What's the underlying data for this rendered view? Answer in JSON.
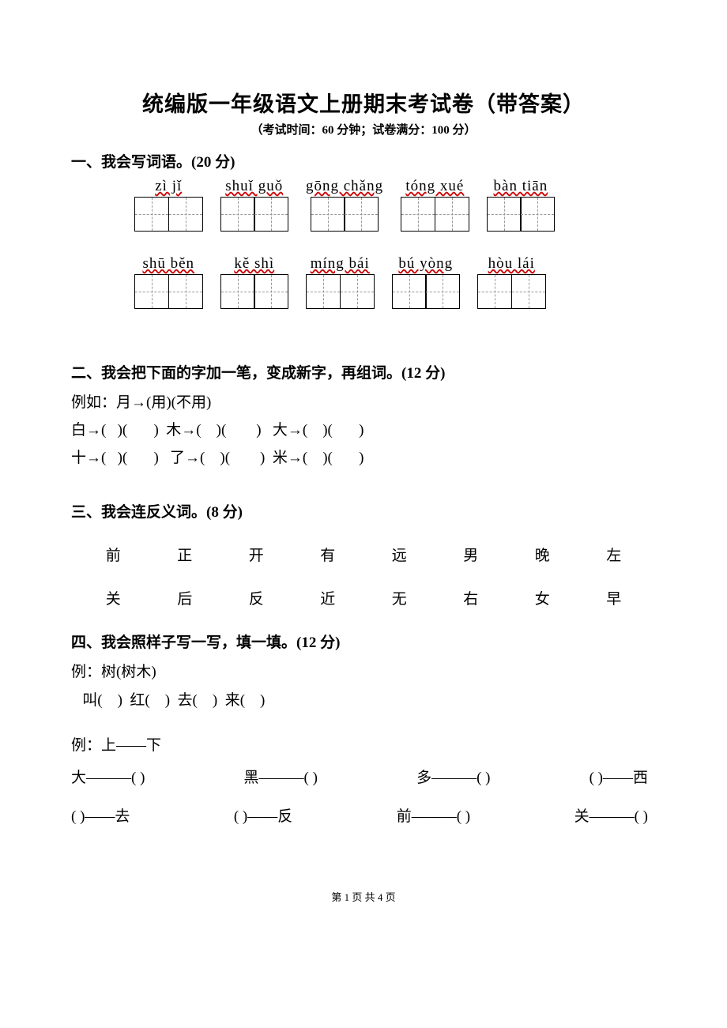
{
  "title": "统编版一年级语文上册期末考试卷（带答案）",
  "subtitle": "（考试时间：60 分钟；试卷满分：100 分）",
  "sections": {
    "s1": {
      "head": "一、我会写词语。(20 分)",
      "row1": [
        {
          "pinyin": "zì  jǐ",
          "cells": 2
        },
        {
          "pinyin": "shuǐ guǒ",
          "cells": 2
        },
        {
          "pinyin": "gōng chǎng",
          "cells": 2
        },
        {
          "pinyin": "tóng xué",
          "cells": 2
        },
        {
          "pinyin": "bàn tiān",
          "cells": 2
        }
      ],
      "row2": [
        {
          "pinyin": "shū běn",
          "cells": 2
        },
        {
          "pinyin": "kě shì",
          "cells": 2
        },
        {
          "pinyin": "míng bái",
          "cells": 2
        },
        {
          "pinyin": "bú yòng",
          "cells": 2
        },
        {
          "pinyin": "hòu lái",
          "cells": 2
        }
      ]
    },
    "s2": {
      "head": "二、我会把下面的字加一笔，变成新字，再组词。(12 分)",
      "example": "例如：月→(用)(不用)",
      "line1": "白→(   )(       )  木→(    )(        )   大→(    )(       )",
      "line2": "十→(   )(       )   了→(    )(        )  米→(    )(       )"
    },
    "s3": {
      "head": "三、我会连反义词。(8 分)",
      "top": [
        "前",
        "正",
        "开",
        "有",
        "远",
        "男",
        "晚",
        "左"
      ],
      "bottom": [
        "关",
        "后",
        "反",
        "近",
        "无",
        "右",
        "女",
        "早"
      ]
    },
    "s4": {
      "head": "四、我会照样子写一写，填一填。(12 分)",
      "ex1": "例：树(树木)",
      "ex1_items": "   叫(    )  红(    )  去(    )  来(    )",
      "ex2": "例：上——下",
      "pairA": [
        "大———(    )",
        "黑———(    )",
        "多———(    )",
        "(    )——西"
      ],
      "pairB": [
        "(    )——去",
        "(    )——反",
        "前———(    )",
        "关———(    )"
      ]
    }
  },
  "footer": "第 1 页 共 4 页",
  "colors": {
    "wavy": "#cc0000",
    "text": "#000000",
    "bg": "#ffffff"
  }
}
